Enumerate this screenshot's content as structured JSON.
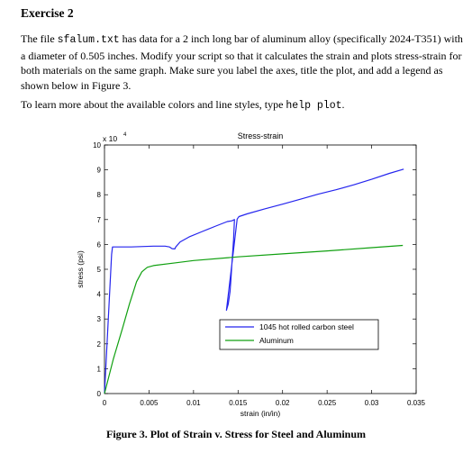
{
  "doc": {
    "heading": "Exercise 2",
    "para1": {
      "pre": "The file ",
      "code": "sfalum.txt",
      "post": " has data for a 2 inch long bar of aluminum alloy (specifically 2024-T351) with a diameter of 0.505 inches.  Modify your script so that it calculates the strain and plots stress-strain for both materials on the same graph.  Make sure you label the axes, title the plot, and add a legend as shown below in Figure 3."
    },
    "para2": {
      "pre": "To learn more about the available colors and line styles, type ",
      "code": "help plot",
      "post": "."
    },
    "caption": "Figure 3.  Plot of Strain v. Stress for Steel and Aluminum"
  },
  "chart_data": {
    "type": "line",
    "title": "Stress-strain",
    "xlabel": "strain (in/in)",
    "ylabel": "stress (psi)",
    "xlim": [
      0,
      0.035
    ],
    "ylim": [
      0,
      100000
    ],
    "xticks": [
      0,
      0.005,
      0.01,
      0.015,
      0.02,
      0.025,
      0.03,
      0.035
    ],
    "xtick_labels": [
      "0",
      "0.005",
      "0.01",
      "0.015",
      "0.02",
      "0.025",
      "0.03",
      "0.035"
    ],
    "yticks": [
      0,
      10000,
      20000,
      30000,
      40000,
      50000,
      60000,
      70000,
      80000,
      90000,
      100000
    ],
    "ytick_labels": [
      "0",
      "1",
      "2",
      "3",
      "4",
      "5",
      "6",
      "7",
      "8",
      "9",
      "10"
    ],
    "y_exponent_label": "x 10",
    "y_exponent_power": "4",
    "grid": false,
    "legend_position": "lower-right",
    "series": [
      {
        "name": "1045 hot rolled carbon steel",
        "color": "#2525ee",
        "x": [
          0,
          0.0008,
          0.0009,
          0.0015,
          0.003,
          0.0055,
          0.0068,
          0.0073,
          0.0076,
          0.0079,
          0.008,
          0.0085,
          0.0095,
          0.011,
          0.0125,
          0.0138,
          0.0143,
          0.0146,
          0.0145,
          0.0143,
          0.0142,
          0.0141,
          0.0139,
          0.0137,
          0.0149,
          0.0151,
          0.016,
          0.018,
          0.02,
          0.022,
          0.024,
          0.026,
          0.028,
          0.03,
          0.032,
          0.0336
        ],
        "y": [
          0,
          56000,
          59000,
          59000,
          59000,
          59300,
          59300,
          59000,
          58300,
          58200,
          59000,
          61000,
          63000,
          65200,
          67400,
          69200,
          69500,
          70000,
          62000,
          52000,
          46000,
          41000,
          36000,
          33500,
          70200,
          71200,
          72300,
          74300,
          76200,
          78200,
          80200,
          82000,
          84000,
          86200,
          88600,
          90300
        ]
      },
      {
        "name": "Aluminum",
        "color": "#10a010",
        "x": [
          0,
          0.001,
          0.002,
          0.0028,
          0.0036,
          0.0042,
          0.0048,
          0.0055,
          0.008,
          0.01,
          0.015,
          0.02,
          0.025,
          0.03,
          0.0335
        ],
        "y": [
          0,
          14000,
          26000,
          36000,
          45000,
          49000,
          50800,
          51500,
          52600,
          53500,
          55000,
          56200,
          57400,
          58700,
          59600
        ]
      }
    ]
  }
}
